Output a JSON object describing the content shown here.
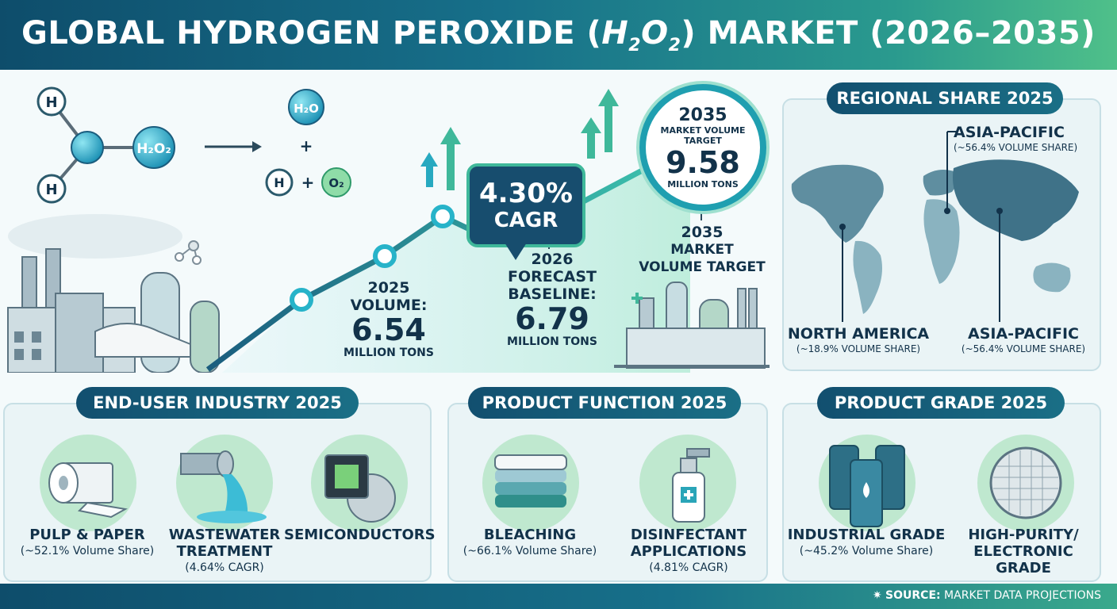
{
  "header": {
    "title_pre": "GLOBAL HYDROGEN PEROXIDE (",
    "formula_h": "H",
    "formula_h_sub": "2",
    "formula_o": "O",
    "formula_o_sub": "2",
    "title_post": ") MARKET (2026–2035)"
  },
  "chemistry": {
    "atom_h": "H",
    "molecule": "H₂O₂",
    "product_water": "H₂O",
    "plus": "+",
    "product_oxygen": "O₂"
  },
  "cagr": {
    "value": "4.30%",
    "label": "CAGR"
  },
  "points": {
    "p2025": {
      "year_label": "2025",
      "label": "VOLUME:",
      "value": "6.54",
      "unit": "MILLION TONS",
      "value_num": 6.54
    },
    "p2026": {
      "year_label": "2026",
      "label": "FORECAST",
      "label2": "BASELINE:",
      "value": "6.79",
      "unit": "MILLION TONS",
      "value_num": 6.79
    },
    "p2035": {
      "year_label": "2035",
      "label": "MARKET VOLUME",
      "label2": "TARGET",
      "value": "9.58",
      "unit": "MILLION TONS",
      "value_num": 9.58
    },
    "p2035_caption": {
      "year": "2035",
      "line1": "MARKET",
      "line2": "VOLUME TARGET"
    }
  },
  "regional": {
    "title": "REGIONAL SHARE 2025",
    "asia_top": {
      "name": "ASIA-PACIFIC",
      "share": "(~56.4% VOLUME SHARE)",
      "share_num": 56.4
    },
    "north_america": {
      "name": "NORTH AMERICA",
      "share": "(~18.9% VOLUME SHARE)",
      "share_num": 18.9
    },
    "asia_bottom": {
      "name": "ASIA-PACIFIC",
      "share": "(~56.4% VOLUME SHARE)",
      "share_num": 56.4
    }
  },
  "end_user": {
    "title": "END-USER INDUSTRY 2025",
    "items": [
      {
        "name": "PULP & PAPER",
        "detail": "(~52.1% Volume Share)",
        "icon": "paper-roll-icon"
      },
      {
        "name": "WASTEWATER",
        "name2": "TREATMENT",
        "detail": "(4.64% CAGR)",
        "icon": "water-pipe-icon"
      },
      {
        "name": "SEMICONDUCTORS",
        "detail": "",
        "icon": "chip-icon"
      }
    ]
  },
  "product_function": {
    "title": "PRODUCT FUNCTION 2025",
    "items": [
      {
        "name": "BLEACHING",
        "detail": "(~66.1% Volume Share)",
        "icon": "folded-towels-icon"
      },
      {
        "name": "DISINFECTANT",
        "name2": "APPLICATIONS",
        "detail": "(4.81% CAGR)",
        "icon": "spray-bottle-icon"
      }
    ]
  },
  "product_grade": {
    "title": "PRODUCT GRADE 2025",
    "items": [
      {
        "name": "INDUSTRIAL GRADE",
        "detail": "(~45.2% Volume Share)",
        "icon": "barrels-icon"
      },
      {
        "name": "HIGH-PURITY/",
        "name2": "ELECTRONIC GRADE",
        "detail": "",
        "icon": "wafer-icon"
      }
    ]
  },
  "footer": {
    "source_label": "SOURCE:",
    "source_text": " MARKET DATA PROJECTIONS"
  },
  "colors": {
    "navy": "#124f6f",
    "teal": "#1f9fb0",
    "green": "#3fb89a",
    "mint": "#bfe8cf"
  }
}
